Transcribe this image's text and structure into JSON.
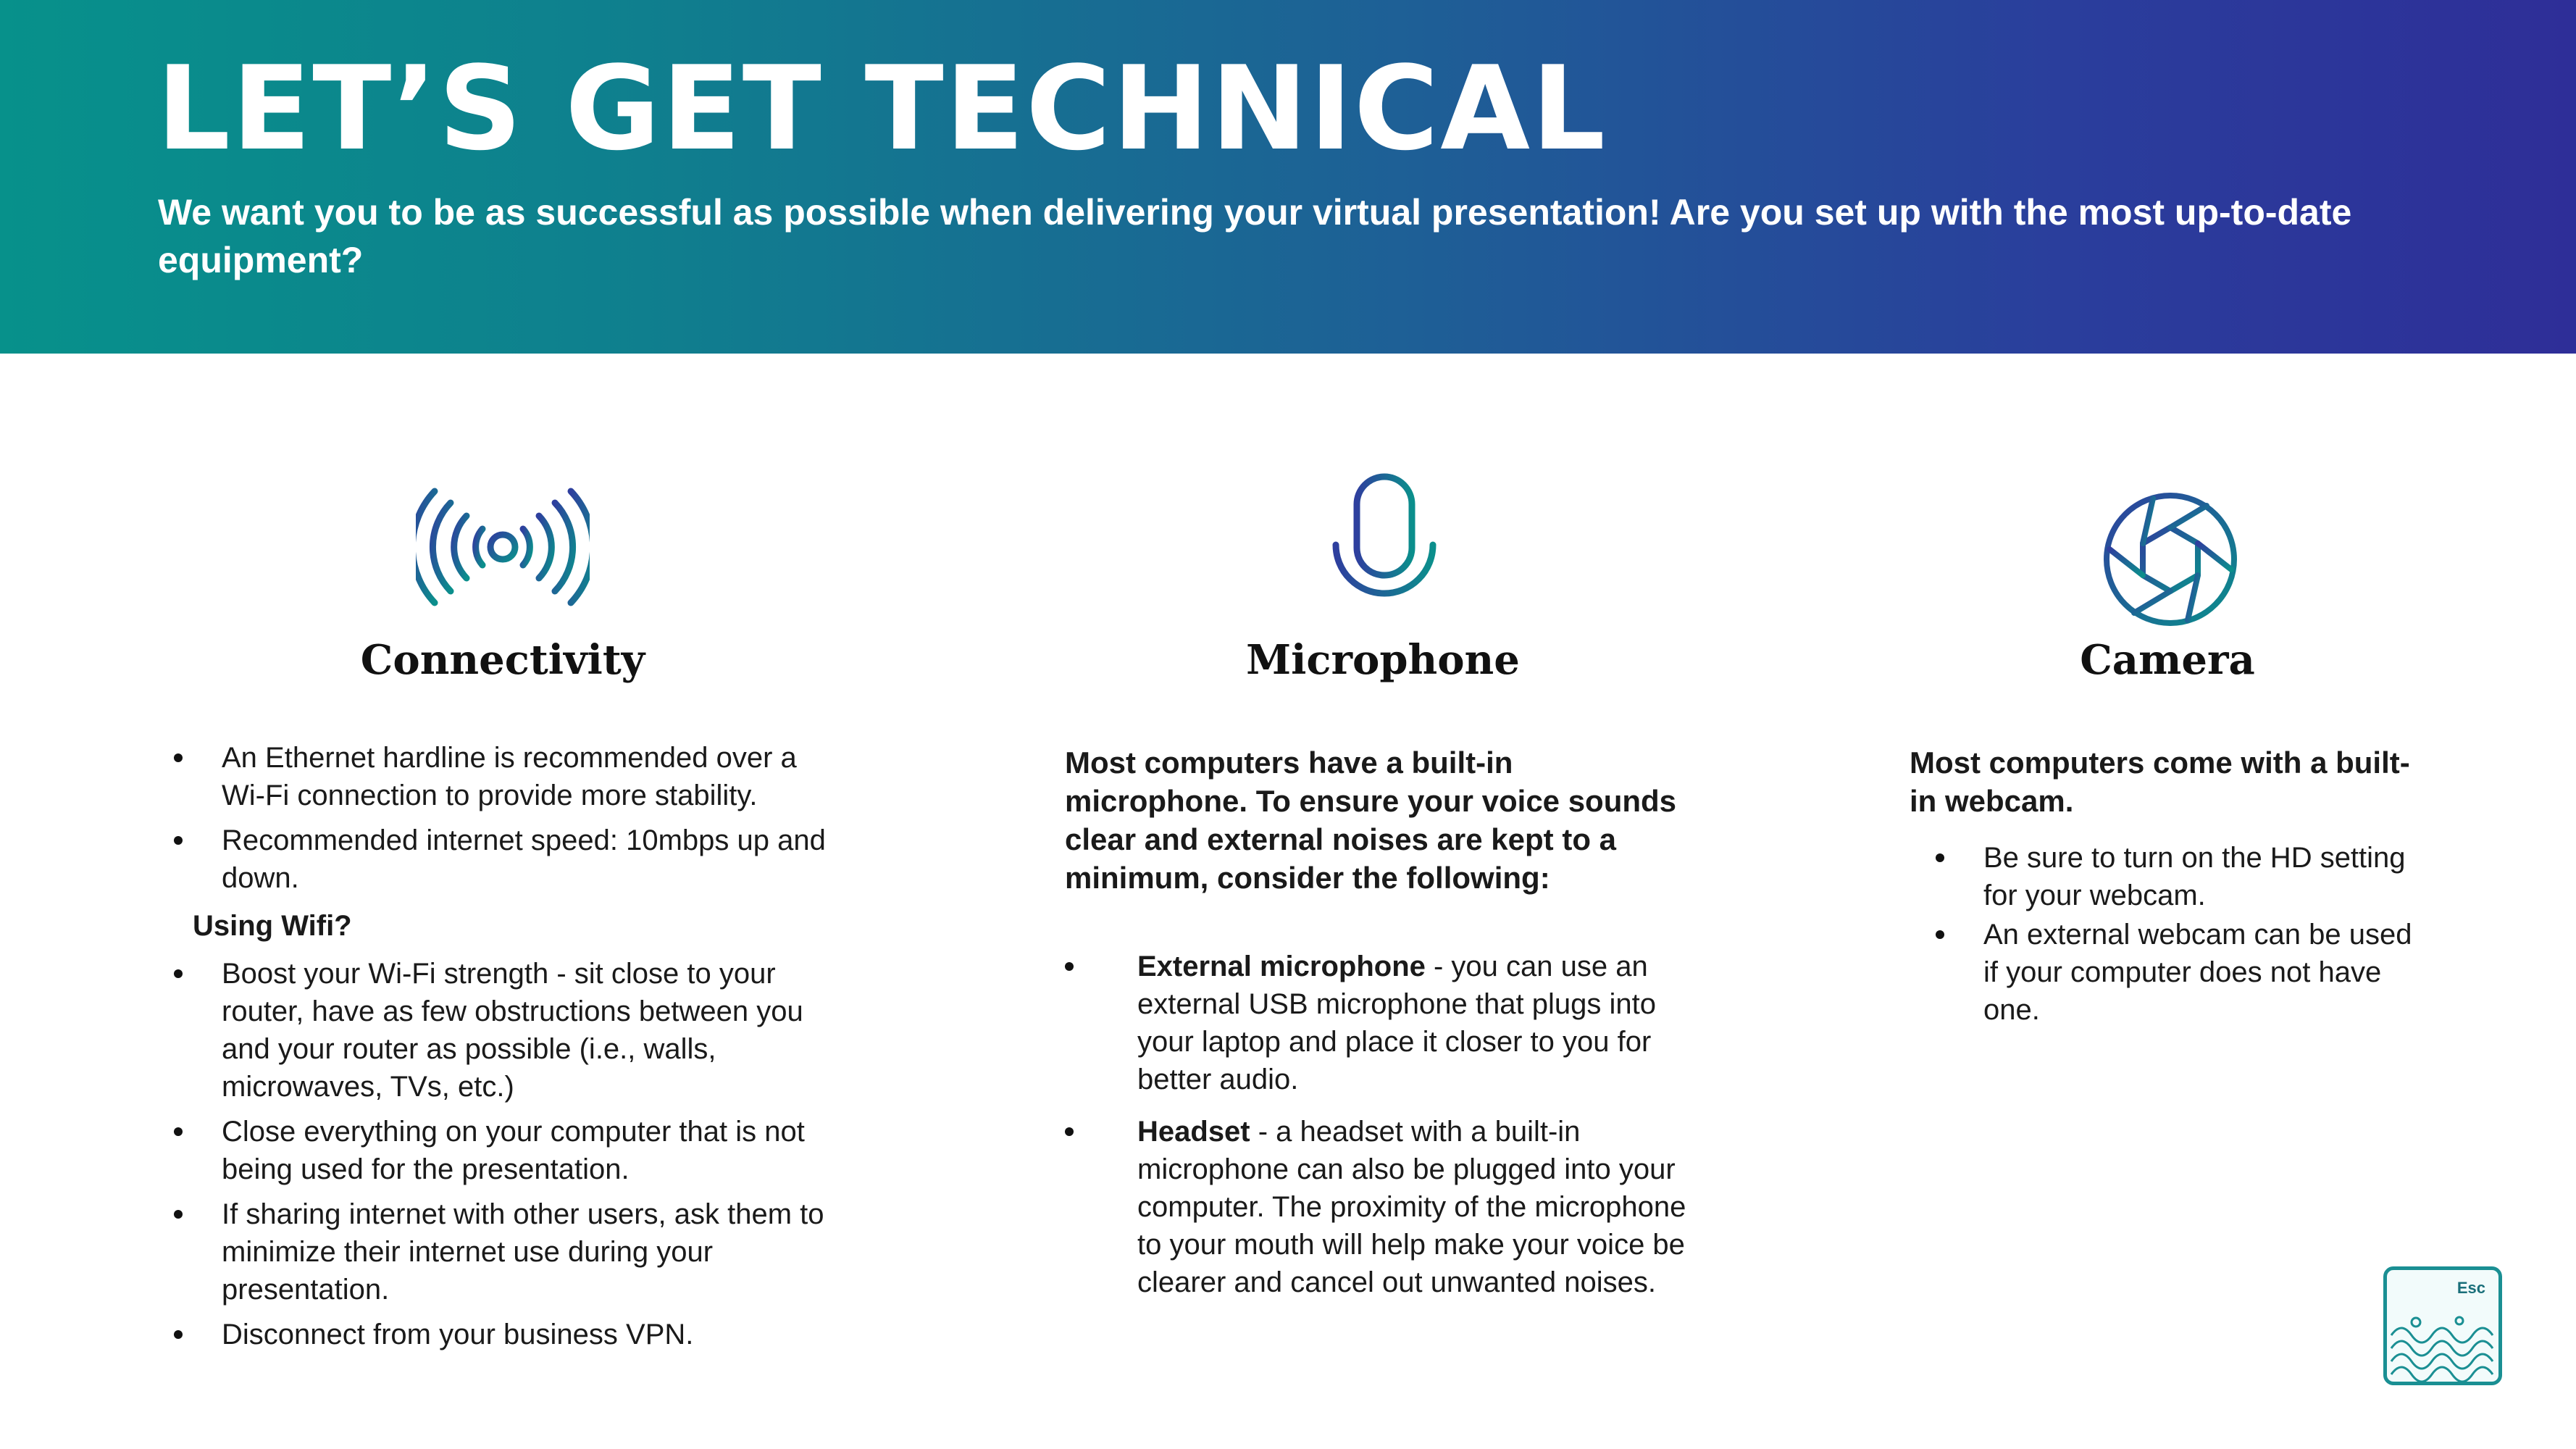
{
  "header": {
    "title": "LET’S GET TECHNICAL",
    "subtitle": "We want you to be as successful as possible when delivering your virtual presentation! Are you set up with the most up-to-date equipment?"
  },
  "columns": {
    "connectivity": {
      "icon": "broadcast-antenna-icon",
      "heading": "Connectivity",
      "bullets": [
        "An Ethernet hardline is recommended over a Wi-Fi connection to provide more stability.",
        "Recommended internet speed: 10mbps up and down."
      ],
      "wifi_label": "Using Wifi?",
      "wifi_bullets": [
        "Boost your Wi-Fi strength - sit close to your router, have as few obstructions between you and your router as possible (i.e., walls, microwaves, TVs, etc.)",
        "Close everything on your computer that is not being used for the presentation.",
        "If sharing internet with other users, ask them to minimize their internet use during your presentation.",
        "Disconnect from your business VPN."
      ]
    },
    "microphone": {
      "icon": "microphone-icon",
      "heading": "Microphone",
      "lead": "Most computers have a built-in microphone. To ensure your voice sounds clear and external noises are kept to a minimum, consider the following:",
      "items": [
        {
          "bold": "External microphone",
          "rest": " - you can use an external USB microphone that plugs into your laptop and place it closer to you for better audio."
        },
        {
          "bold": "Headset",
          "rest": " - a headset with a built-in microphone can also be plugged into your computer. The proximity of the microphone to your mouth will help make your voice be clearer and cancel out unwanted noises."
        }
      ]
    },
    "camera": {
      "icon": "camera-aperture-icon",
      "heading": "Camera",
      "lead": "Most computers come with a built-in webcam.",
      "bullets": [
        "Be sure to turn on the HD setting for your webcam.",
        "An external webcam can be used if your computer does not have one."
      ]
    }
  },
  "badge": {
    "label": "Esc",
    "icon": "wave-logo-icon"
  },
  "colors": {
    "teal": "#07918b",
    "indigo": "#2e2e98",
    "text": "#1a1a1a"
  }
}
